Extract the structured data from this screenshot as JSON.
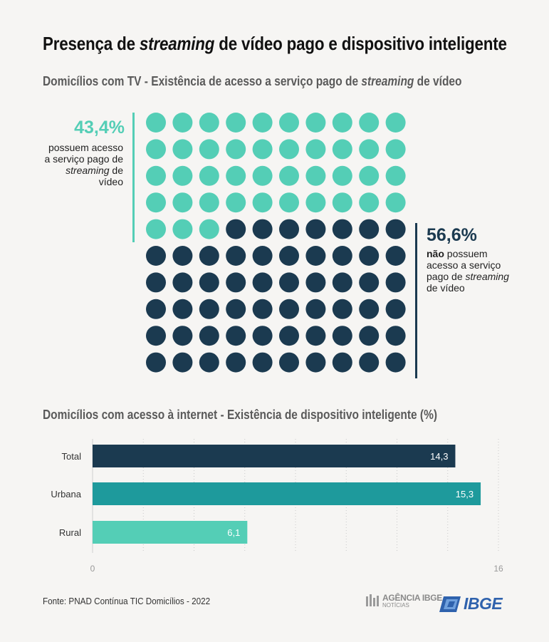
{
  "title": {
    "prefix": "Presença de ",
    "em": "streaming",
    "suffix": " de vídeo pago e dispositivo inteligente"
  },
  "waffle_section": {
    "subtitle_prefix": "Domicílios com TV - Existência de acesso a serviço pago de ",
    "subtitle_em": "streaming",
    "subtitle_suffix": " de vídeo",
    "left": {
      "percent": "43,4%",
      "line1": "possuem acesso",
      "line2": "a serviço pago de",
      "line3_em": "streaming",
      "line3_suffix": " de",
      "line4": "vídeo"
    },
    "right": {
      "percent": "56,6%",
      "line1_bold": "não",
      "line1_rest": " possuem",
      "line2": "acesso a serviço",
      "line3_prefix": "pago de ",
      "line3_em": "streaming",
      "line4": "de vídeo"
    }
  },
  "bar_section": {
    "subtitle": "Domicílios com acesso à internet - Existência de dispositivo inteligente (%)"
  },
  "chart_data": [
    {
      "type": "waffle",
      "rows": 10,
      "cols": 10,
      "categories": [
        "possuem acesso",
        "não possuem acesso"
      ],
      "values": [
        43.4,
        56.6
      ],
      "filled_cells": 43,
      "colors": [
        "#54ceb6",
        "#1b3a50"
      ]
    },
    {
      "type": "bar",
      "orientation": "horizontal",
      "categories": [
        "Total",
        "Urbana",
        "Rural"
      ],
      "values": [
        14.3,
        15.3,
        6.1
      ],
      "value_labels": [
        "14,3",
        "15,3",
        "6,1"
      ],
      "xlim": [
        0,
        16
      ],
      "tick_labels": [
        "0",
        "16"
      ],
      "colors": [
        "#1b3a50",
        "#1e9a9c",
        "#54ceb6"
      ],
      "grid": true
    }
  ],
  "footer": {
    "source": "Fonte: PNAD Contínua TIC Domicílios - 2022",
    "agencia_logo_text": "AGÊNCIA IBGE",
    "agencia_logo_sub": "NOTÍCIAS",
    "ibge_logo_text": "IBGE"
  }
}
